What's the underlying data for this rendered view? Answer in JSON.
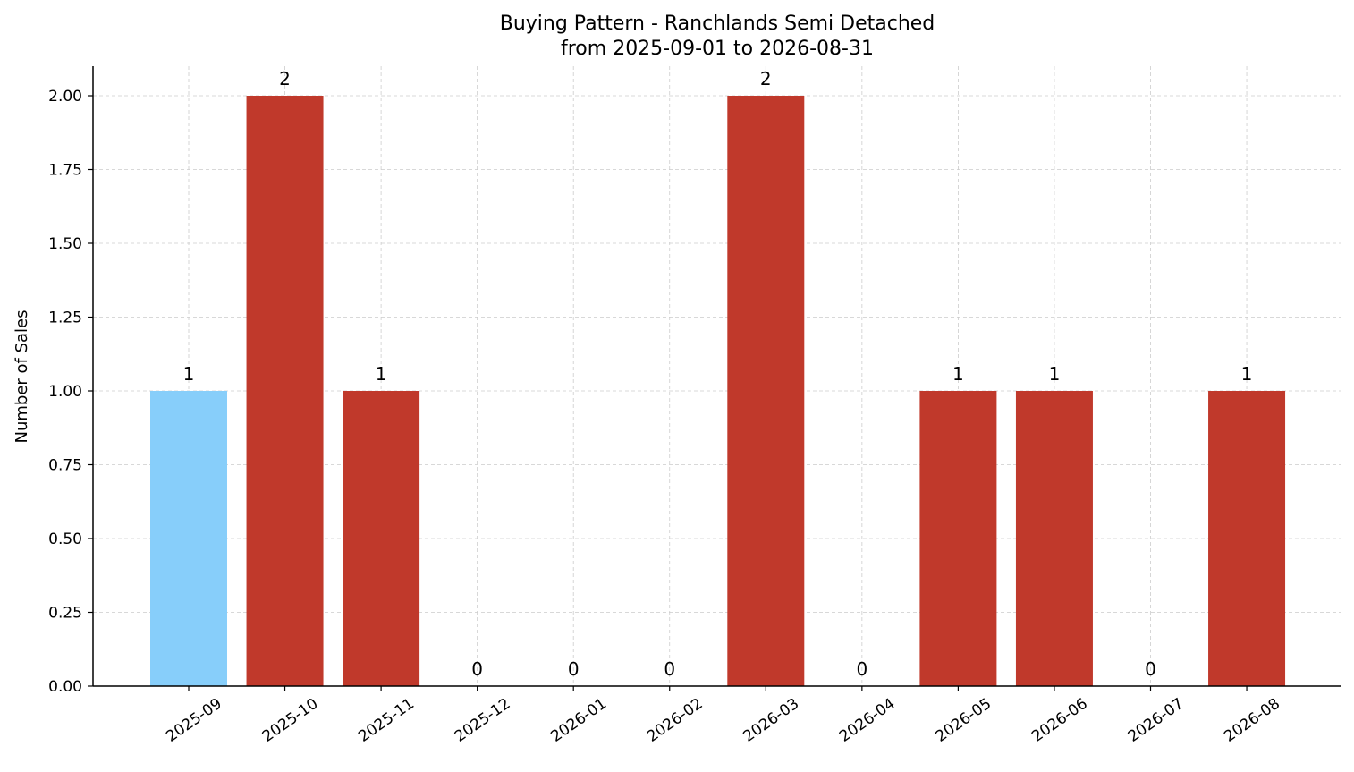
{
  "chart_data": {
    "type": "bar",
    "title_line1": "Buying Pattern - Ranchlands Semi Detached",
    "title_line2": "from 2025-09-01 to 2026-08-31",
    "xlabel": "",
    "ylabel": "Number of Sales",
    "categories": [
      "2025-09",
      "2025-10",
      "2025-11",
      "2025-12",
      "2026-01",
      "2026-02",
      "2026-03",
      "2026-04",
      "2026-05",
      "2026-06",
      "2026-07",
      "2026-08"
    ],
    "values": [
      1,
      2,
      1,
      0,
      0,
      0,
      2,
      0,
      1,
      1,
      0,
      1
    ],
    "bar_colors": [
      "#87CEFA",
      "#C0392B",
      "#C0392B",
      "#C0392B",
      "#C0392B",
      "#C0392B",
      "#C0392B",
      "#C0392B",
      "#C0392B",
      "#C0392B",
      "#C0392B",
      "#C0392B"
    ],
    "ylim": [
      0,
      2.1
    ],
    "yticks": [
      "0.00",
      "0.25",
      "0.50",
      "0.75",
      "1.00",
      "1.25",
      "1.50",
      "1.75",
      "2.00"
    ],
    "grid": true,
    "legend": "none"
  }
}
